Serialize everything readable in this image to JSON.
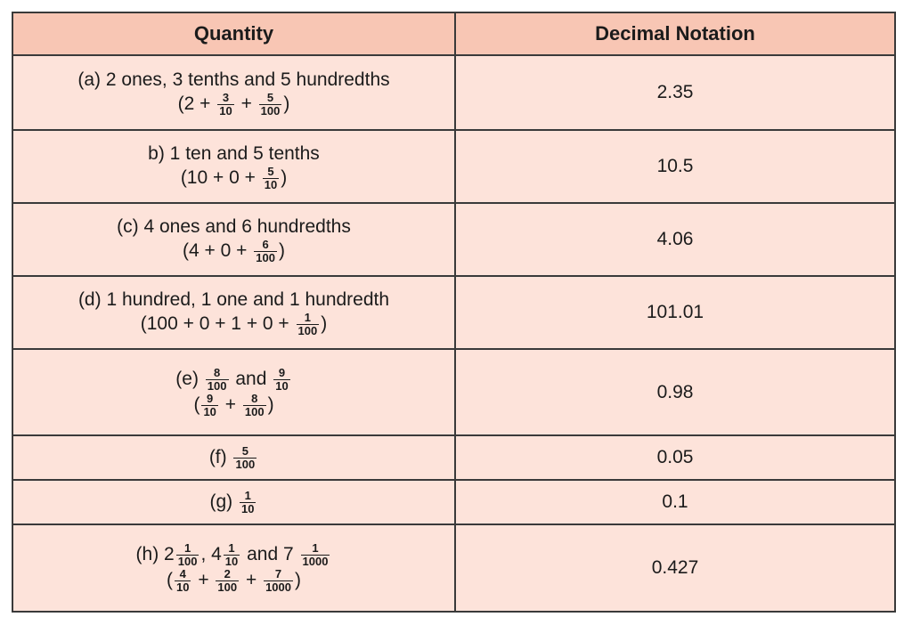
{
  "header": {
    "quantity": "Quantity",
    "decimal": "Decimal Notation"
  },
  "rows": [
    {
      "label": "(a) 2 ones, 3 tenths and 5 hundredths",
      "expansion": {
        "open": "(2 +",
        "f1": [
          "3",
          "10"
        ],
        "plus": "+",
        "f2": [
          "5",
          "100"
        ],
        "close": ")"
      },
      "decimal": "2.35"
    },
    {
      "label": "b) 1 ten and 5 tenths",
      "expansion": {
        "open": "(10 + 0 +",
        "f1": [
          "5",
          "10"
        ],
        "close": ")"
      },
      "decimal": "10.5"
    },
    {
      "label": "(c) 4 ones and 6 hundredths",
      "expansion": {
        "open": "(4 + 0 +",
        "f1": [
          "6",
          "100"
        ],
        "close": ")"
      },
      "decimal": "4.06"
    },
    {
      "label": "(d) 1 hundred, 1 one and 1 hundredth",
      "expansion": {
        "open": "(100 + 0 + 1 + 0 +",
        "f1": [
          "1",
          "100"
        ],
        "close": ")"
      },
      "decimal": "101.01"
    },
    {
      "label_prefix": "(e)",
      "label_f1": [
        "8",
        "100"
      ],
      "label_mid": "and",
      "label_f2": [
        "9",
        "10"
      ],
      "expansion": {
        "open": "(",
        "f1": [
          "9",
          "10"
        ],
        "plus": "+",
        "f2": [
          "8",
          "100"
        ],
        "close": ")"
      },
      "decimal": "0.98"
    },
    {
      "label_prefix": "(f)",
      "label_f1": [
        "5",
        "100"
      ],
      "decimal": "0.05"
    },
    {
      "label_prefix": "(g)",
      "label_f1": [
        "1",
        "10"
      ],
      "decimal": "0.1"
    },
    {
      "label_prefix": "(h) 2",
      "label_f1": [
        "1",
        "100"
      ],
      "label_sep": ", 4",
      "label_f2": [
        "1",
        "10"
      ],
      "label_mid": "and 7",
      "label_f3": [
        "1",
        "1000"
      ],
      "expansion": {
        "open": "(",
        "f1": [
          "4",
          "10"
        ],
        "plus": "+",
        "f2": [
          "2",
          "100"
        ],
        "plus2": "+",
        "f3": [
          "7",
          "1000"
        ],
        "close": ")"
      },
      "decimal": "0.427"
    }
  ]
}
